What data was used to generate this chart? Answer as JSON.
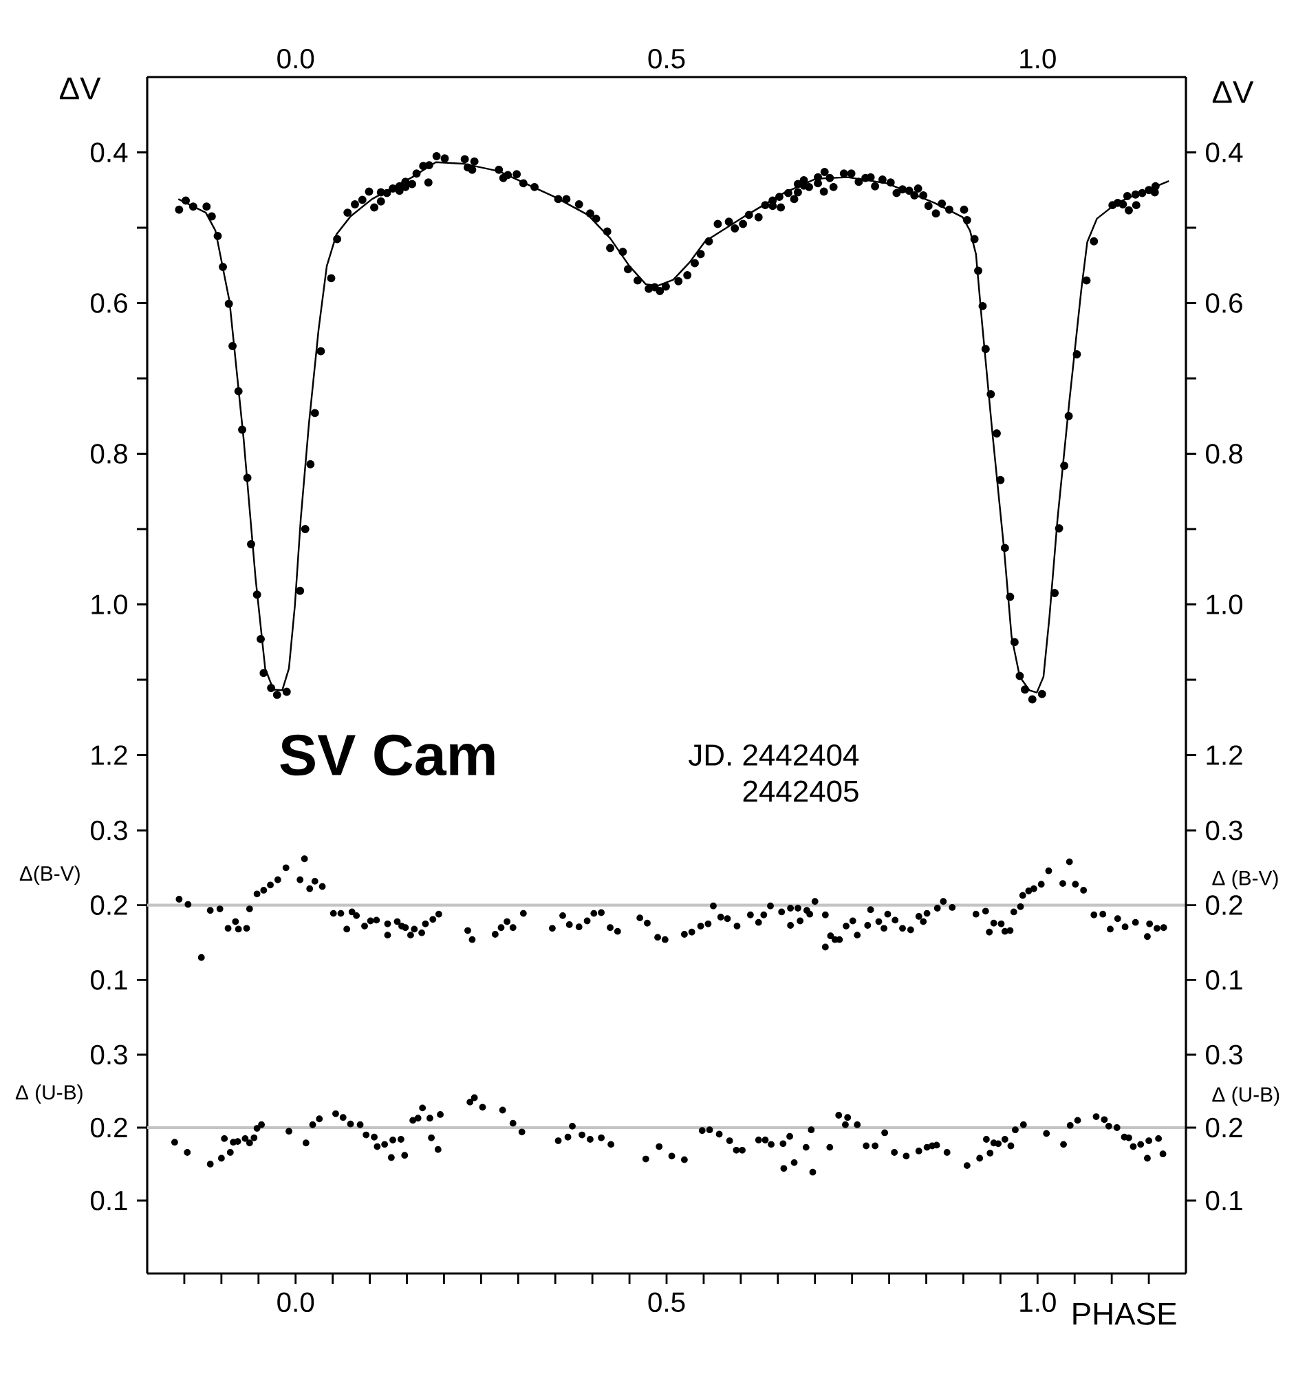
{
  "chart_data": [
    {
      "type": "scatter",
      "xlim": [
        -0.2,
        1.2
      ],
      "x2lim": [
        -0.2,
        1.2
      ],
      "x2ticks": [
        {
          "value": 0,
          "label": "0.0"
        },
        0.5,
        {
          "value": 1,
          "label": "1.0"
        }
      ],
      "ylim": [
        1.3,
        0.3
      ],
      "yticks": [
        0.4,
        {
          "value": 0.5,
          "label": null
        },
        0.6,
        {
          "value": 0.7,
          "label": null
        },
        0.8,
        {
          "value": 0.9,
          "label": null
        },
        {
          "value": 1,
          "label": "1.0"
        },
        {
          "value": 1.1,
          "label": null
        },
        1.2
      ],
      "y2lim": [
        1.3,
        0.3
      ],
      "y2ticks": [
        0.4,
        {
          "value": 0.5,
          "label": null
        },
        0.6,
        {
          "value": 0.7,
          "label": null
        },
        0.8,
        {
          "value": 0.9,
          "label": null
        },
        {
          "value": 1,
          "label": "1.0"
        },
        {
          "value": 1.1,
          "label": null
        },
        1.2
      ],
      "ylabel": "ΔV",
      "y2label": "ΔV",
      "tick_labels": "y",
      "annotations": [
        "SV Cam",
        "JD. 2442404",
        "2442405"
      ],
      "series": [
        {
          "type": "scatter",
          "marker": "circle",
          "color": "#000000",
          "x": [
            -0.157,
            -0.148,
            -0.138,
            -0.12,
            -0.113,
            -0.105,
            -0.098,
            -0.09,
            -0.085,
            -0.077,
            -0.072,
            -0.065,
            -0.06,
            -0.052,
            -0.047,
            -0.043,
            -0.033,
            -0.025,
            -0.012,
            0.006,
            0.013,
            0.02,
            0.026,
            0.034,
            0.048,
            0.056,
            0.07,
            0.08,
            0.09,
            0.099,
            0.106,
            0.115,
            0.115,
            0.123,
            0.131,
            0.14,
            0.14,
            0.148,
            0.148,
            0.157,
            0.163,
            0.172,
            0.18,
            0.179,
            0.19,
            0.201,
            0.228,
            0.232,
            0.238,
            0.241,
            0.274,
            0.28,
            0.286,
            0.298,
            0.307,
            0.322,
            0.354,
            0.365,
            0.382,
            0.397,
            0.405,
            0.42,
            0.424,
            0.441,
            0.448,
            0.461,
            0.476,
            0.484,
            0.491,
            0.499,
            0.516,
            0.528,
            0.538,
            0.546,
            0.557,
            0.569,
            0.584,
            0.592,
            0.603,
            0.611,
            0.624,
            0.633,
            0.643,
            0.643,
            0.654,
            0.652,
            0.664,
            0.672,
            0.677,
            0.677,
            0.685,
            0.685,
            0.692,
            0.704,
            0.704,
            0.713,
            0.712,
            0.72,
            0.725,
            0.739,
            0.749,
            0.759,
            0.768,
            0.775,
            0.781,
            0.791,
            0.802,
            0.81,
            0.818,
            0.827,
            0.834,
            0.839,
            0.846,
            0.853,
            0.863,
            0.871,
            0.881,
            0.901,
            0.905,
            0.915,
            0.92,
            0.926,
            0.93,
            0.937,
            0.945,
            0.95,
            0.956,
            0.963,
            0.969,
            0.976,
            0.983,
            0.993,
            1.006,
            1.023,
            1.029,
            1.036,
            1.042,
            1.053,
            1.066,
            1.076,
            1.101,
            1.108,
            1.115,
            1.123,
            1.121,
            1.133,
            1.132,
            1.141,
            1.15,
            1.158,
            1.159
          ],
          "values": [
            0.476,
            0.464,
            0.472,
            0.472,
            0.485,
            0.511,
            0.552,
            0.601,
            0.657,
            0.717,
            0.768,
            0.832,
            0.92,
            0.987,
            1.046,
            1.091,
            1.111,
            1.12,
            1.116,
            0.982,
            0.9,
            0.814,
            0.746,
            0.664,
            0.567,
            0.515,
            0.48,
            0.469,
            0.463,
            0.452,
            0.473,
            0.453,
            0.465,
            0.454,
            0.448,
            0.445,
            0.451,
            0.439,
            0.446,
            0.442,
            0.428,
            0.418,
            0.417,
            0.44,
            0.405,
            0.408,
            0.409,
            0.42,
            0.423,
            0.412,
            0.423,
            0.434,
            0.43,
            0.429,
            0.441,
            0.446,
            0.462,
            0.462,
            0.469,
            0.481,
            0.488,
            0.505,
            0.527,
            0.532,
            0.555,
            0.57,
            0.581,
            0.579,
            0.584,
            0.578,
            0.571,
            0.563,
            0.547,
            0.535,
            0.518,
            0.495,
            0.492,
            0.501,
            0.495,
            0.483,
            0.486,
            0.47,
            0.471,
            0.464,
            0.473,
            0.459,
            0.454,
            0.462,
            0.453,
            0.442,
            0.437,
            0.444,
            0.446,
            0.433,
            0.441,
            0.426,
            0.452,
            0.434,
            0.446,
            0.428,
            0.428,
            0.439,
            0.434,
            0.433,
            0.445,
            0.436,
            0.44,
            0.454,
            0.449,
            0.451,
            0.457,
            0.448,
            0.457,
            0.471,
            0.481,
            0.468,
            0.476,
            0.476,
            0.49,
            0.515,
            0.557,
            0.604,
            0.661,
            0.721,
            0.773,
            0.835,
            0.925,
            0.99,
            1.05,
            1.095,
            1.113,
            1.126,
            1.119,
            0.985,
            0.899,
            0.816,
            0.75,
            0.668,
            0.57,
            0.518,
            0.47,
            0.467,
            0.469,
            0.477,
            0.458,
            0.47,
            0.456,
            0.454,
            0.45,
            0.453,
            0.445
          ]
        },
        {
          "type": "line",
          "marker": "none",
          "color": "#000000",
          "x": [
            -0.158,
            -0.121,
            -0.108,
            -0.089,
            -0.07,
            -0.054,
            -0.041,
            -0.03,
            -0.018,
            -0.009,
            -0.001,
            0.007,
            0.018,
            0.031,
            0.042,
            0.055,
            0.074,
            0.103,
            0.157,
            0.189,
            0.226,
            0.274,
            0.349,
            0.394,
            0.424,
            0.45,
            0.472,
            0.488,
            0.509,
            0.531,
            0.552,
            0.605,
            0.658,
            0.701,
            0.744,
            0.797,
            0.861,
            0.899,
            0.909,
            0.917,
            0.925,
            0.939,
            0.955,
            0.965,
            0.976,
            0.989,
            0.999,
            1.008,
            1.016,
            1.027,
            1.043,
            1.059,
            1.067,
            1.08,
            1.107,
            1.15,
            1.177
          ],
          "values": [
            0.462,
            0.48,
            0.504,
            0.598,
            0.781,
            0.965,
            1.085,
            1.113,
            1.114,
            1.085,
            1.002,
            0.886,
            0.76,
            0.635,
            0.551,
            0.509,
            0.485,
            0.462,
            0.433,
            0.413,
            0.415,
            0.425,
            0.459,
            0.483,
            0.514,
            0.551,
            0.575,
            0.577,
            0.569,
            0.546,
            0.518,
            0.485,
            0.454,
            0.435,
            0.433,
            0.441,
            0.467,
            0.486,
            0.504,
            0.535,
            0.624,
            0.771,
            0.928,
            1.043,
            1.096,
            1.114,
            1.117,
            1.096,
            1.017,
            0.886,
            0.729,
            0.582,
            0.519,
            0.488,
            0.467,
            0.449,
            0.438
          ]
        }
      ]
    },
    {
      "type": "scatter",
      "xlim": [
        -0.2,
        1.2
      ],
      "ylim": [
        0,
        0.3
      ],
      "yticks": [
        0.1,
        0.2,
        0.3
      ],
      "y2lim": [
        0,
        0.3
      ],
      "y2ticks": [
        0.1,
        0.2,
        0.3
      ],
      "ylabel": "Δ(B-V)",
      "y2label": "Δ (B-V)",
      "tick_labels": "y",
      "marker": "circle",
      "color": "#000000",
      "ref_lines": [
        {
          "axis": "y",
          "value": 0.2,
          "color": "#c4c4c4"
        }
      ],
      "x": [
        -0.157,
        -0.145,
        -0.127,
        -0.115,
        -0.102,
        -0.091,
        -0.081,
        -0.077,
        -0.066,
        -0.062,
        -0.052,
        -0.043,
        -0.034,
        -0.024,
        -0.013,
        0.006,
        0.012,
        0.019,
        0.026,
        0.036,
        0.051,
        0.061,
        0.069,
        0.076,
        0.082,
        0.093,
        0.101,
        0.109,
        0.124,
        0.124,
        0.137,
        0.143,
        0.148,
        0.155,
        0.16,
        0.17,
        0.175,
        0.185,
        0.193,
        0.232,
        0.238,
        0.269,
        0.277,
        0.285,
        0.293,
        0.307,
        0.346,
        0.36,
        0.369,
        0.382,
        0.393,
        0.402,
        0.412,
        0.424,
        0.434,
        0.464,
        0.474,
        0.488,
        0.498,
        0.524,
        0.534,
        0.546,
        0.556,
        0.563,
        0.573,
        0.582,
        0.595,
        0.613,
        0.624,
        0.631,
        0.64,
        0.655,
        0.667,
        0.667,
        0.677,
        0.68,
        0.689,
        0.693,
        0.7,
        0.714,
        0.714,
        0.721,
        0.727,
        0.733,
        0.742,
        0.751,
        0.757,
        0.771,
        0.775,
        0.786,
        0.793,
        0.798,
        0.808,
        0.818,
        0.829,
        0.84,
        0.846,
        0.851,
        0.865,
        0.873,
        0.885,
        0.917,
        0.93,
        0.935,
        0.941,
        0.951,
        0.956,
        0.963,
        0.968,
        0.977,
        0.98,
        0.988,
        0.995,
        1.005,
        1.015,
        1.034,
        1.043,
        1.051,
        1.062,
        1.076,
        1.088,
        1.098,
        1.108,
        1.118,
        1.132,
        1.148,
        1.151,
        1.161,
        1.17
      ],
      "values": [
        0.208,
        0.201,
        0.13,
        0.193,
        0.195,
        0.169,
        0.178,
        0.168,
        0.169,
        0.195,
        0.215,
        0.22,
        0.227,
        0.234,
        0.25,
        0.234,
        0.262,
        0.222,
        0.232,
        0.225,
        0.189,
        0.189,
        0.168,
        0.191,
        0.186,
        0.172,
        0.179,
        0.18,
        0.16,
        0.175,
        0.178,
        0.172,
        0.17,
        0.16,
        0.168,
        0.163,
        0.175,
        0.181,
        0.188,
        0.166,
        0.154,
        0.161,
        0.17,
        0.178,
        0.17,
        0.189,
        0.169,
        0.186,
        0.174,
        0.171,
        0.179,
        0.189,
        0.19,
        0.17,
        0.165,
        0.183,
        0.176,
        0.157,
        0.154,
        0.161,
        0.164,
        0.172,
        0.175,
        0.199,
        0.184,
        0.182,
        0.172,
        0.187,
        0.177,
        0.187,
        0.199,
        0.191,
        0.173,
        0.196,
        0.196,
        0.179,
        0.193,
        0.188,
        0.205,
        0.187,
        0.144,
        0.159,
        0.154,
        0.154,
        0.172,
        0.179,
        0.16,
        0.173,
        0.194,
        0.178,
        0.169,
        0.188,
        0.18,
        0.169,
        0.167,
        0.185,
        0.178,
        0.189,
        0.196,
        0.205,
        0.197,
        0.188,
        0.192,
        0.164,
        0.176,
        0.175,
        0.165,
        0.166,
        0.191,
        0.198,
        0.213,
        0.219,
        0.222,
        0.228,
        0.246,
        0.229,
        0.258,
        0.228,
        0.22,
        0.187,
        0.188,
        0.168,
        0.182,
        0.171,
        0.177,
        0.158,
        0.175,
        0.169,
        0.17
      ]
    },
    {
      "type": "scatter",
      "xlim": [
        -0.2,
        1.2
      ],
      "ylim": [
        0,
        0.3
      ],
      "yticks": [
        0.1,
        0.2,
        0.3
      ],
      "y2lim": [
        0,
        0.3
      ],
      "y2ticks": [
        0.1,
        0.2,
        0.3
      ],
      "xticks": [
        {
          "value": -0.15,
          "label": null
        },
        {
          "value": -0.1,
          "label": null
        },
        {
          "value": -0.05,
          "label": null
        },
        {
          "value": 0,
          "label": "0.0"
        },
        {
          "value": 0.05,
          "label": null
        },
        {
          "value": 0.1,
          "label": null
        },
        {
          "value": 0.15,
          "label": null
        },
        {
          "value": 0.2,
          "label": null
        },
        {
          "value": 0.25,
          "label": null
        },
        {
          "value": 0.3,
          "label": null
        },
        {
          "value": 0.35,
          "label": null
        },
        {
          "value": 0.4,
          "label": null
        },
        {
          "value": 0.45,
          "label": null
        },
        0.5,
        {
          "value": 0.55,
          "label": null
        },
        {
          "value": 0.6,
          "label": null
        },
        {
          "value": 0.65,
          "label": null
        },
        {
          "value": 0.7,
          "label": null
        },
        {
          "value": 0.75,
          "label": null
        },
        {
          "value": 0.8,
          "label": null
        },
        {
          "value": 0.85,
          "label": null
        },
        {
          "value": 0.9,
          "label": null
        },
        {
          "value": 0.95,
          "label": null
        },
        {
          "value": 1,
          "label": "1.0"
        },
        {
          "value": 1.05,
          "label": null
        },
        {
          "value": 1.1,
          "label": null
        },
        {
          "value": 1.15,
          "label": null
        }
      ],
      "xlabel": "PHASE",
      "ylabel": "Δ (U-B)",
      "y2label": "Δ (U-B)",
      "marker": "circle",
      "color": "#000000",
      "ref_lines": [
        {
          "axis": "y",
          "value": 0.2,
          "color": "#c4c4c4"
        }
      ],
      "x": [
        -0.163,
        -0.146,
        -0.115,
        -0.1,
        -0.096,
        -0.088,
        -0.084,
        -0.078,
        -0.068,
        -0.062,
        -0.056,
        -0.052,
        -0.046,
        -0.009,
        0.014,
        0.023,
        0.032,
        0.054,
        0.064,
        0.074,
        0.087,
        0.095,
        0.106,
        0.11,
        0.12,
        0.129,
        0.131,
        0.142,
        0.147,
        0.158,
        0.165,
        0.171,
        0.181,
        0.183,
        0.192,
        0.195,
        0.235,
        0.241,
        0.252,
        0.279,
        0.293,
        0.305,
        0.354,
        0.367,
        0.373,
        0.386,
        0.397,
        0.412,
        0.425,
        0.472,
        0.49,
        0.507,
        0.524,
        0.548,
        0.558,
        0.571,
        0.585,
        0.594,
        0.602,
        0.624,
        0.633,
        0.641,
        0.658,
        0.657,
        0.666,
        0.672,
        0.688,
        0.695,
        0.697,
        0.72,
        0.732,
        0.741,
        0.744,
        0.757,
        0.769,
        0.781,
        0.794,
        0.807,
        0.823,
        0.84,
        0.851,
        0.858,
        0.864,
        0.878,
        0.905,
        0.922,
        0.931,
        0.936,
        0.941,
        0.947,
        0.956,
        0.964,
        0.97,
        0.981,
        1.012,
        1.035,
        1.044,
        1.054,
        1.079,
        1.09,
        1.096,
        1.107,
        1.117,
        1.123,
        1.129,
        1.139,
        1.15,
        1.148,
        1.163,
        1.169
      ],
      "values": [
        0.18,
        0.166,
        0.15,
        0.158,
        0.185,
        0.166,
        0.18,
        0.181,
        0.185,
        0.179,
        0.186,
        0.199,
        0.204,
        0.195,
        0.179,
        0.204,
        0.212,
        0.219,
        0.214,
        0.205,
        0.204,
        0.19,
        0.187,
        0.174,
        0.177,
        0.159,
        0.183,
        0.184,
        0.162,
        0.21,
        0.213,
        0.227,
        0.213,
        0.186,
        0.17,
        0.218,
        0.235,
        0.241,
        0.228,
        0.224,
        0.206,
        0.194,
        0.182,
        0.187,
        0.202,
        0.19,
        0.184,
        0.186,
        0.177,
        0.157,
        0.174,
        0.161,
        0.156,
        0.196,
        0.197,
        0.191,
        0.182,
        0.169,
        0.169,
        0.183,
        0.183,
        0.177,
        0.144,
        0.178,
        0.188,
        0.152,
        0.173,
        0.197,
        0.139,
        0.173,
        0.217,
        0.204,
        0.214,
        0.204,
        0.175,
        0.175,
        0.193,
        0.166,
        0.161,
        0.168,
        0.173,
        0.175,
        0.176,
        0.166,
        0.148,
        0.158,
        0.184,
        0.165,
        0.179,
        0.178,
        0.184,
        0.175,
        0.197,
        0.204,
        0.192,
        0.177,
        0.203,
        0.21,
        0.215,
        0.211,
        0.202,
        0.2,
        0.187,
        0.186,
        0.174,
        0.177,
        0.182,
        0.158,
        0.185,
        0.164
      ]
    }
  ]
}
